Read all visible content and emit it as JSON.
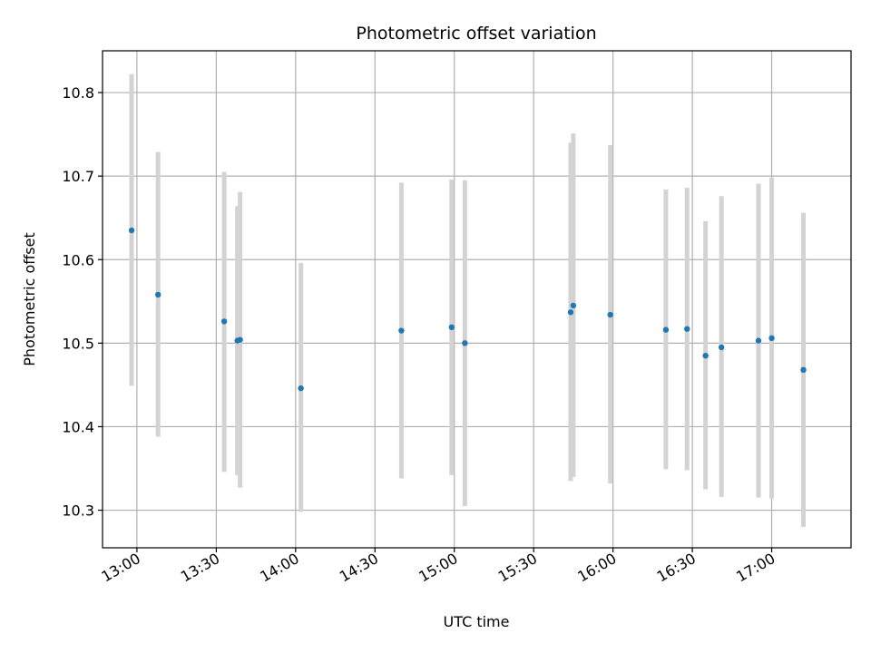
{
  "chart_data": {
    "type": "scatter",
    "title": "Photometric offset variation",
    "xlabel": "UTC time",
    "ylabel": "Photometric offset",
    "xlim": [
      "12:47",
      "17:30"
    ],
    "ylim": [
      10.255,
      10.85
    ],
    "x_ticks": [
      "13:00",
      "13:30",
      "14:00",
      "14:30",
      "15:00",
      "15:30",
      "16:00",
      "16:30",
      "17:00"
    ],
    "y_ticks": [
      10.3,
      10.4,
      10.5,
      10.6,
      10.7,
      10.8
    ],
    "grid": true,
    "colors": {
      "point": "#1f77b4",
      "errorbar": "#d3d3d3",
      "grid": "#b0b0b0"
    },
    "points": [
      {
        "x": "12:58",
        "y": 10.635,
        "y_low": 10.449,
        "y_high": 10.822
      },
      {
        "x": "13:08",
        "y": 10.558,
        "y_low": 10.388,
        "y_high": 10.729
      },
      {
        "x": "13:33",
        "y": 10.526,
        "y_low": 10.346,
        "y_high": 10.705
      },
      {
        "x": "13:38",
        "y": 10.503,
        "y_low": 10.342,
        "y_high": 10.664
      },
      {
        "x": "13:39",
        "y": 10.504,
        "y_low": 10.327,
        "y_high": 10.681
      },
      {
        "x": "14:02",
        "y": 10.446,
        "y_low": 10.298,
        "y_high": 10.596
      },
      {
        "x": "14:40",
        "y": 10.515,
        "y_low": 10.338,
        "y_high": 10.692
      },
      {
        "x": "14:59",
        "y": 10.519,
        "y_low": 10.342,
        "y_high": 10.696
      },
      {
        "x": "15:04",
        "y": 10.5,
        "y_low": 10.305,
        "y_high": 10.695
      },
      {
        "x": "15:44",
        "y": 10.537,
        "y_low": 10.335,
        "y_high": 10.74
      },
      {
        "x": "15:45",
        "y": 10.545,
        "y_low": 10.34,
        "y_high": 10.751
      },
      {
        "x": "15:59",
        "y": 10.534,
        "y_low": 10.332,
        "y_high": 10.737
      },
      {
        "x": "16:20",
        "y": 10.516,
        "y_low": 10.349,
        "y_high": 10.684
      },
      {
        "x": "16:28",
        "y": 10.517,
        "y_low": 10.348,
        "y_high": 10.686
      },
      {
        "x": "16:35",
        "y": 10.485,
        "y_low": 10.325,
        "y_high": 10.646
      },
      {
        "x": "16:41",
        "y": 10.495,
        "y_low": 10.316,
        "y_high": 10.676
      },
      {
        "x": "16:55",
        "y": 10.503,
        "y_low": 10.315,
        "y_high": 10.691
      },
      {
        "x": "17:00",
        "y": 10.506,
        "y_low": 10.314,
        "y_high": 10.698
      },
      {
        "x": "17:12",
        "y": 10.468,
        "y_low": 10.28,
        "y_high": 10.656
      }
    ]
  }
}
